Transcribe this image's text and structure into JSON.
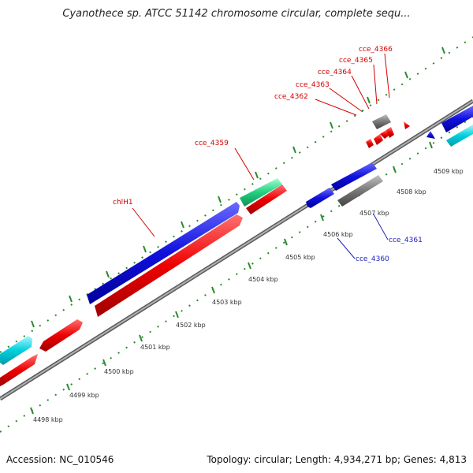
{
  "title": "Cyanothece sp. ATCC 51142 chromosome circular, complete sequ...",
  "footer": {
    "accession": "Accession: NC_010546",
    "stats": "Topology: circular; Length: 4,934,271 bp; Genes: 4,813"
  },
  "colors": {
    "forward_cds": "#1010dd",
    "reverse_cds": "#ee0000",
    "rna": "#00d0dd",
    "pseudo": "#777777",
    "highlight": "#22d080",
    "backbone": "#8c8c8c",
    "scale_ticks": "#2a8a2a"
  },
  "scale_labels": [
    "4498 kbp",
    "4499 kbp",
    "4500 kbp",
    "4501 kbp",
    "4502 kbp",
    "4503 kbp",
    "4504 kbp",
    "4505 kbp",
    "4506 kbp",
    "4507 kbp",
    "4508 kbp",
    "4509 kbp"
  ],
  "gene_labels": {
    "chlH1": "chlH1",
    "cce_4359": "cce_4359",
    "cce_4360": "cce_4360",
    "cce_4361": "cce_4361",
    "cce_4362": "cce_4362",
    "cce_4363": "cce_4363",
    "cce_4364": "cce_4364",
    "cce_4365": "cce_4365",
    "cce_4366": "cce_4366"
  }
}
